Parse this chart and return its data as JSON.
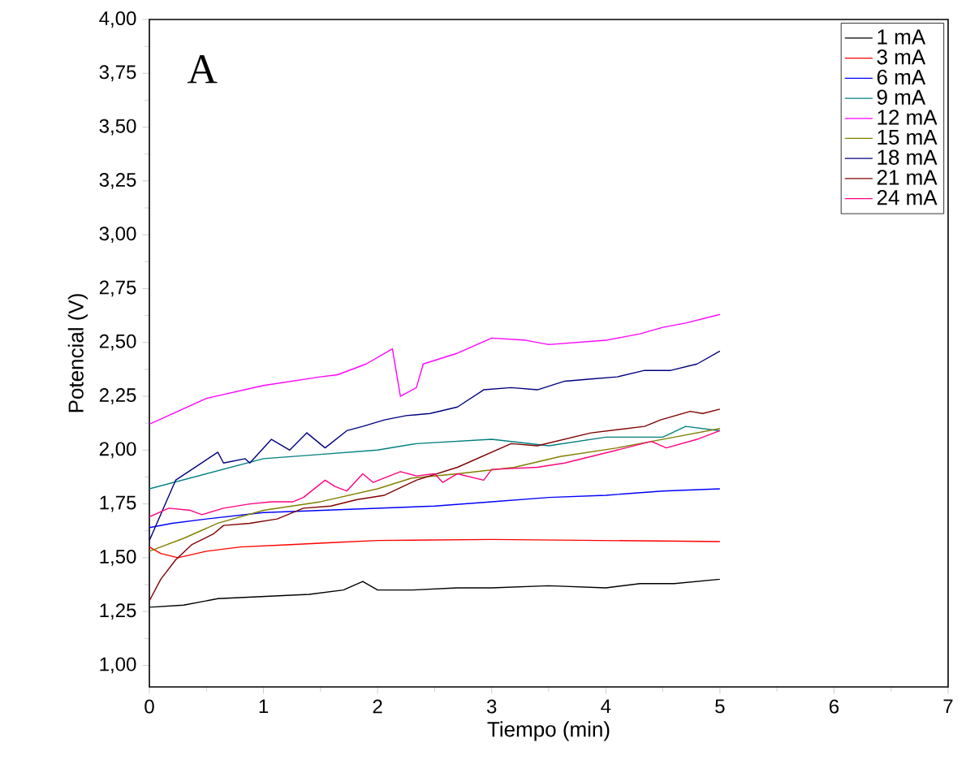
{
  "chart_data": {
    "type": "line",
    "xlabel": "Tiempo (min)",
    "ylabel": "Potencial (V)",
    "annotations": [
      "A"
    ],
    "xlim": [
      0,
      7
    ],
    "ylim": [
      0.9,
      4.0
    ],
    "xticks": [
      0,
      1,
      2,
      3,
      4,
      5,
      6,
      7
    ],
    "yticks": [
      {
        "value": 1.0,
        "label": "1,00"
      },
      {
        "value": 1.25,
        "label": "1,25"
      },
      {
        "value": 1.5,
        "label": "1,50"
      },
      {
        "value": 1.75,
        "label": "1,75"
      },
      {
        "value": 2.0,
        "label": "2,00"
      },
      {
        "value": 2.25,
        "label": "2,25"
      },
      {
        "value": 2.5,
        "label": "2,50"
      },
      {
        "value": 2.75,
        "label": "2,75"
      },
      {
        "value": 3.0,
        "label": "3,00"
      },
      {
        "value": 3.25,
        "label": "3,25"
      },
      {
        "value": 3.5,
        "label": "3,50"
      },
      {
        "value": 3.75,
        "label": "3,75"
      },
      {
        "value": 4.0,
        "label": "4,00"
      }
    ],
    "legend": "top right",
    "series": [
      {
        "name": "1 mA",
        "color": "#000000",
        "x": [
          0,
          0.3,
          0.6,
          1.0,
          1.4,
          1.7,
          1.87,
          2.0,
          2.3,
          2.7,
          3.0,
          3.5,
          4.0,
          4.3,
          4.6,
          5.0
        ],
        "values": [
          1.27,
          1.28,
          1.31,
          1.32,
          1.33,
          1.35,
          1.39,
          1.35,
          1.35,
          1.36,
          1.36,
          1.37,
          1.36,
          1.38,
          1.38,
          1.4
        ]
      },
      {
        "name": "3 mA",
        "color": "#ff0000",
        "x": [
          0,
          0.1,
          0.25,
          0.5,
          0.8,
          1.2,
          1.6,
          2.0,
          3.0,
          4.0,
          5.0
        ],
        "values": [
          1.55,
          1.52,
          1.5,
          1.53,
          1.55,
          1.56,
          1.57,
          1.58,
          1.585,
          1.58,
          1.575
        ]
      },
      {
        "name": "6 mA",
        "color": "#0000ff",
        "x": [
          0,
          0.2,
          0.5,
          1.0,
          1.5,
          2.0,
          2.5,
          3.0,
          3.5,
          4.0,
          4.5,
          5.0
        ],
        "values": [
          1.64,
          1.66,
          1.68,
          1.71,
          1.72,
          1.73,
          1.74,
          1.76,
          1.78,
          1.79,
          1.81,
          1.82
        ]
      },
      {
        "name": "9 mA",
        "color": "#008080",
        "x": [
          0,
          0.5,
          1.0,
          1.5,
          2.0,
          2.34,
          3.0,
          3.5,
          4.0,
          4.5,
          4.7,
          5.0
        ],
        "values": [
          1.82,
          1.89,
          1.96,
          1.98,
          2.0,
          2.03,
          2.05,
          2.02,
          2.06,
          2.06,
          2.11,
          2.09
        ]
      },
      {
        "name": "12 mA",
        "color": "#ff00ff",
        "x": [
          0,
          0.5,
          1.0,
          1.5,
          1.65,
          1.9,
          2.13,
          2.2,
          2.34,
          2.4,
          2.7,
          3.0,
          3.3,
          3.5,
          4.0,
          4.3,
          4.5,
          4.7,
          5.0
        ],
        "values": [
          2.12,
          2.24,
          2.3,
          2.34,
          2.35,
          2.4,
          2.47,
          2.25,
          2.29,
          2.4,
          2.45,
          2.52,
          2.51,
          2.49,
          2.51,
          2.54,
          2.57,
          2.59,
          2.63
        ]
      },
      {
        "name": "15 mA",
        "color": "#808000",
        "x": [
          0,
          0.3,
          0.6,
          1.0,
          1.5,
          2.0,
          2.3,
          2.7,
          3.2,
          3.6,
          4.1,
          4.6,
          5.0
        ],
        "values": [
          1.53,
          1.59,
          1.66,
          1.72,
          1.76,
          1.82,
          1.87,
          1.89,
          1.92,
          1.97,
          2.01,
          2.06,
          2.1
        ]
      },
      {
        "name": "18 mA",
        "color": "#000080",
        "x": [
          0,
          0.23,
          0.6,
          0.65,
          0.84,
          0.88,
          1.07,
          1.23,
          1.38,
          1.54,
          1.73,
          1.87,
          2.06,
          2.25,
          2.46,
          2.7,
          2.93,
          3.17,
          3.4,
          3.64,
          3.87,
          4.1,
          4.34,
          4.57,
          4.8,
          5.0
        ],
        "values": [
          1.58,
          1.86,
          1.99,
          1.94,
          1.96,
          1.94,
          2.05,
          2.0,
          2.08,
          2.01,
          2.09,
          2.11,
          2.14,
          2.16,
          2.17,
          2.2,
          2.28,
          2.29,
          2.28,
          2.32,
          2.33,
          2.34,
          2.37,
          2.37,
          2.4,
          2.46
        ]
      },
      {
        "name": "21 mA",
        "color": "#800000",
        "x": [
          0,
          0.1,
          0.23,
          0.37,
          0.56,
          0.65,
          0.88,
          1.12,
          1.35,
          1.59,
          1.82,
          2.06,
          2.34,
          2.7,
          3.17,
          3.4,
          3.87,
          4.34,
          4.48,
          4.74,
          4.85,
          5.0
        ],
        "values": [
          1.3,
          1.4,
          1.49,
          1.56,
          1.61,
          1.65,
          1.66,
          1.68,
          1.73,
          1.74,
          1.77,
          1.79,
          1.86,
          1.92,
          2.03,
          2.02,
          2.08,
          2.11,
          2.14,
          2.18,
          2.17,
          2.19
        ]
      },
      {
        "name": "24 mA",
        "color": "#ff0080",
        "x": [
          0,
          0.17,
          0.36,
          0.46,
          0.65,
          0.88,
          1.07,
          1.26,
          1.35,
          1.54,
          1.63,
          1.73,
          1.87,
          1.96,
          2.2,
          2.34,
          2.5,
          2.57,
          2.7,
          2.93,
          3.0,
          3.4,
          3.64,
          4.1,
          4.4,
          4.53,
          4.8,
          5.0
        ],
        "values": [
          1.69,
          1.73,
          1.72,
          1.7,
          1.73,
          1.75,
          1.76,
          1.76,
          1.78,
          1.86,
          1.83,
          1.81,
          1.89,
          1.85,
          1.9,
          1.88,
          1.89,
          1.85,
          1.89,
          1.86,
          1.91,
          1.92,
          1.94,
          2.0,
          2.04,
          2.01,
          2.05,
          2.09
        ]
      }
    ]
  }
}
